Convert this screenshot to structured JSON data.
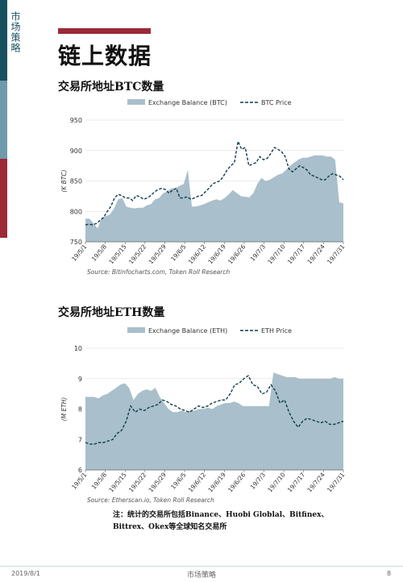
{
  "sidebar": {
    "label": "市场策略"
  },
  "page": {
    "title": "链上数据"
  },
  "charts": [
    {
      "section_title": "交易所地址BTC数量",
      "source": "Source: Bitinfocharts.com, Token Roll Research"
    },
    {
      "section_title": "交易所地址ETH数量",
      "source": "Source: Etherscan.io, Token Roll Research"
    }
  ],
  "note": {
    "line1": "注：统计的交易所包括Binance、Huobi Globlal、Bitfinex、",
    "line2": "Bittrex、Okex等全球知名交易所"
  },
  "footer": {
    "date": "2019/8/1",
    "section": "市场策略",
    "page_number": "8"
  },
  "colors": {
    "area": "#a9bfcb",
    "line": "#0f3d4c",
    "sidebar_top": "#17505f",
    "sidebar_mid": "#6e9aab",
    "sidebar_bot": "#9b2a36"
  },
  "chart_data": [
    {
      "type": "area",
      "title": "",
      "xlabel": "",
      "ylabel": "(K BTC)",
      "ylim": [
        750,
        950
      ],
      "yticks": [
        750,
        800,
        850,
        900,
        950
      ],
      "grid": true,
      "legend_position": "top",
      "x_ticks": [
        "19/5/1",
        "19/5/8",
        "19/5/15",
        "19/5/22",
        "19/5/29",
        "19/6/5",
        "19/6/12",
        "19/6/19",
        "19/6/26",
        "19/7/3",
        "19/7/10",
        "19/7/17",
        "19/7/24",
        "19/7/31"
      ],
      "series": [
        {
          "name": "Exchange Balance (BTC)",
          "kind": "area",
          "values": [
            788,
            788,
            780,
            772,
            790,
            792,
            795,
            805,
            820,
            822,
            808,
            806,
            805,
            806,
            806,
            810,
            812,
            820,
            822,
            830,
            833,
            838,
            838,
            842,
            845,
            868,
            808,
            808,
            810,
            812,
            815,
            818,
            820,
            818,
            822,
            828,
            835,
            830,
            825,
            824,
            823,
            830,
            845,
            855,
            850,
            852,
            856,
            860,
            862,
            868,
            875,
            880,
            885,
            888,
            888,
            890,
            892,
            892,
            892,
            890,
            890,
            885,
            815,
            813
          ]
        },
        {
          "name": "BTC Price",
          "kind": "line",
          "values": [
            778,
            779,
            778,
            780,
            785,
            790,
            800,
            808,
            822,
            828,
            826,
            822,
            822,
            818,
            826,
            824,
            820,
            822,
            826,
            832,
            836,
            838,
            836,
            830,
            835,
            838,
            822,
            822,
            824,
            820,
            822,
            825,
            826,
            832,
            838,
            845,
            848,
            850,
            858,
            868,
            875,
            880,
            915,
            902,
            905,
            875,
            878,
            880,
            890,
            885,
            887,
            895,
            905,
            902,
            898,
            890,
            870,
            865,
            870,
            875,
            872,
            868,
            860,
            858,
            855,
            852,
            852,
            858,
            862,
            860,
            858,
            852
          ]
        }
      ]
    },
    {
      "type": "area",
      "title": "",
      "xlabel": "",
      "ylabel": "(M ETH)",
      "ylim": [
        6,
        10
      ],
      "yticks": [
        6,
        7,
        8,
        9,
        10
      ],
      "grid": true,
      "legend_position": "top",
      "x_ticks": [
        "19/5/1",
        "19/5/8",
        "19/5/15",
        "19/5/22",
        "19/5/29",
        "19/6/5",
        "19/6/12",
        "19/6/19",
        "19/6/26",
        "19/7/3",
        "19/7/10",
        "19/7/17",
        "19/7/24",
        "19/7/31"
      ],
      "series": [
        {
          "name": "Exchange Balance (ETH)",
          "kind": "area",
          "values": [
            8.4,
            8.4,
            8.4,
            8.35,
            8.45,
            8.5,
            8.6,
            8.7,
            8.8,
            8.85,
            8.7,
            8.3,
            8.5,
            8.6,
            8.65,
            8.6,
            8.7,
            8.4,
            8.2,
            8.0,
            7.9,
            7.9,
            7.95,
            7.9,
            7.95,
            7.95,
            8.0,
            8.0,
            8.05,
            8.0,
            8.1,
            8.15,
            8.2,
            8.2,
            8.25,
            8.2,
            8.1,
            8.1,
            8.1,
            8.1,
            8.1,
            8.1,
            8.1,
            9.2,
            9.15,
            9.1,
            9.05,
            9.05,
            9.05,
            9.0,
            9.0,
            9.0,
            9.0,
            9.0,
            9.0,
            9.0,
            9.0,
            9.05,
            9.0,
            9.0
          ]
        },
        {
          "name": "ETH Price",
          "kind": "line",
          "values": [
            6.9,
            6.85,
            6.85,
            6.9,
            6.9,
            6.95,
            7.0,
            7.2,
            7.3,
            7.6,
            8.1,
            7.9,
            8.0,
            7.95,
            8.05,
            8.1,
            8.15,
            8.3,
            8.25,
            8.15,
            8.1,
            8.0,
            7.95,
            7.9,
            8.0,
            8.1,
            8.05,
            8.1,
            8.2,
            8.25,
            8.3,
            8.3,
            8.5,
            8.8,
            8.85,
            9.0,
            9.1,
            8.8,
            8.75,
            8.5,
            8.55,
            8.8,
            8.6,
            8.2,
            8.3,
            7.9,
            7.6,
            7.4,
            7.6,
            7.7,
            7.65,
            7.6,
            7.55,
            7.6,
            7.5,
            7.5,
            7.55,
            7.6
          ]
        }
      ]
    }
  ]
}
